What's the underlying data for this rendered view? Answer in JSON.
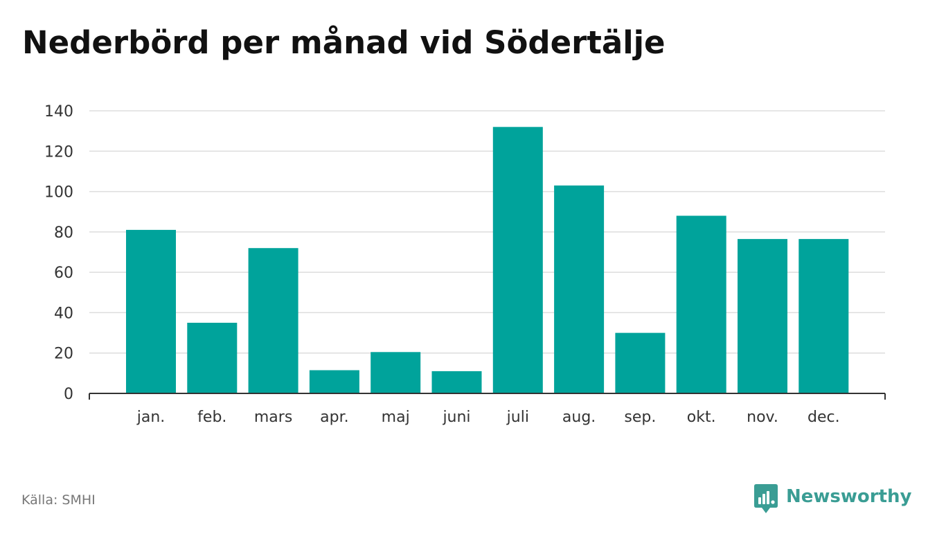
{
  "title": "Nederbörd per månad vid Södertälje",
  "source": "Källa: SMHI",
  "brand": {
    "name": "Newsworthy",
    "icon": "newsworthy-logo-icon",
    "color": "#3a9d94"
  },
  "colors": {
    "bar": "#00a39b",
    "grid": "#dddddd",
    "axis": "#333333"
  },
  "chart_data": {
    "type": "bar",
    "categories": [
      "jan.",
      "feb.",
      "mars",
      "apr.",
      "maj",
      "juni",
      "juli",
      "aug.",
      "sep.",
      "okt.",
      "nov.",
      "dec."
    ],
    "values": [
      81,
      35,
      72,
      11.5,
      20.5,
      11,
      132,
      103,
      30,
      88,
      76.5,
      76.5
    ],
    "ylim": [
      0,
      140
    ],
    "yticks": [
      0,
      20,
      40,
      60,
      80,
      100,
      120,
      140
    ],
    "grid": true,
    "legend": "none",
    "xlabel": "",
    "ylabel": ""
  }
}
